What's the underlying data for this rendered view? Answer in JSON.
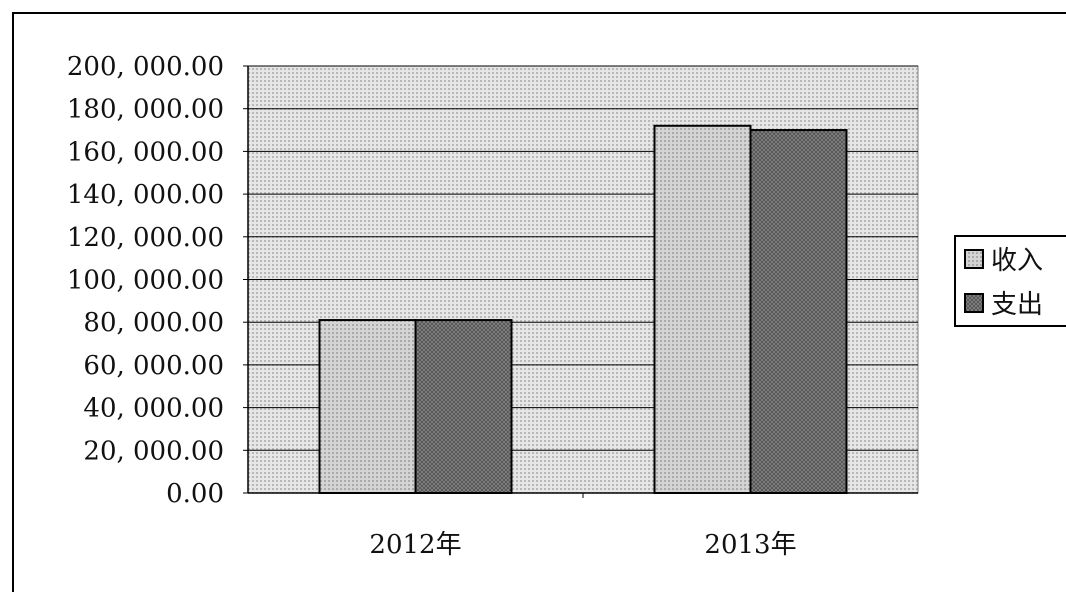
{
  "chart_data": {
    "type": "bar",
    "categories": [
      "2012年",
      "2013年"
    ],
    "series": [
      {
        "name": "收入",
        "values": [
          81000,
          172000
        ],
        "color": "#cfcfcf"
      },
      {
        "name": "支出",
        "values": [
          81000,
          170000
        ],
        "color": "#7f7f7f"
      }
    ],
    "ylim": [
      0,
      200000
    ],
    "yticks": [
      "0.00",
      "20, 000.00",
      "40, 000.00",
      "60, 000.00",
      "80, 000.00",
      "100, 000.00",
      "120, 000.00",
      "140, 000.00",
      "160, 000.00",
      "180, 000.00",
      "200, 000.00"
    ],
    "grid": true,
    "legend": "right",
    "plot_background": "#d9d9d9"
  }
}
